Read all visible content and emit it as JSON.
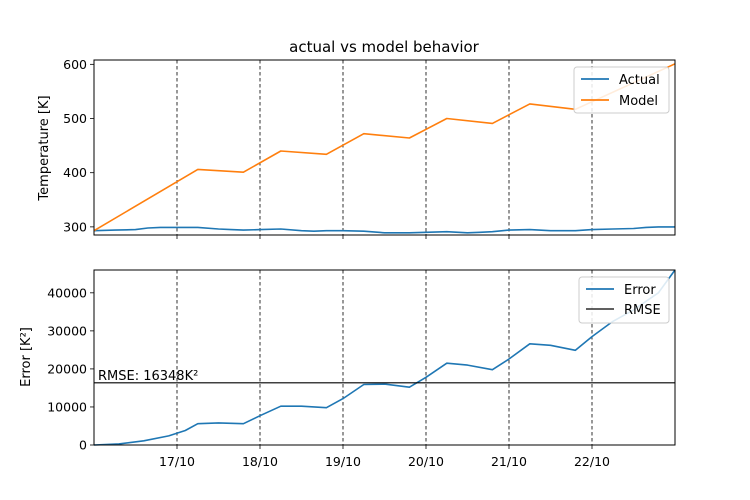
{
  "chart_data": [
    {
      "type": "line",
      "title": "actual vs model behavior",
      "xlabel": "",
      "ylabel": "Temperature [K]",
      "ylim": [
        285,
        608
      ],
      "yticks": [
        300,
        400,
        500,
        600
      ],
      "ytick_labels": [
        "300",
        "400",
        "500",
        "600"
      ],
      "xlim": [
        0,
        7
      ],
      "xticks": [
        1,
        2,
        3,
        4,
        5,
        6
      ],
      "xtick_labels": [
        "",
        "",
        "",
        "",
        "",
        ""
      ],
      "grid": "vertical dashed lines at x ticks",
      "legend": "top-right",
      "x": [
        0,
        0.25,
        0.5,
        0.65,
        0.8,
        1,
        1.25,
        1.5,
        1.65,
        1.8,
        2,
        2.25,
        2.5,
        2.65,
        2.8,
        3,
        3.25,
        3.5,
        3.65,
        3.8,
        4,
        4.25,
        4.5,
        4.65,
        4.8,
        5,
        5.25,
        5.5,
        5.65,
        5.8,
        6,
        6.25,
        6.5,
        6.65,
        6.8,
        7
      ],
      "series": [
        {
          "name": "Actual",
          "color": "#1f77b4",
          "values": [
            293,
            294,
            295,
            298,
            299,
            299,
            299,
            296,
            295,
            294,
            295,
            296,
            293,
            292,
            293,
            293,
            292,
            289,
            289,
            289,
            290,
            291,
            289,
            290,
            291,
            294,
            295,
            293,
            293,
            293,
            295,
            296,
            297,
            299,
            300,
            300
          ]
        },
        {
          "name": "Model",
          "color": "#ff7f0e",
          "x": [
            0,
            1.25,
            1.8,
            2.25,
            2.8,
            3.25,
            3.8,
            4.25,
            4.8,
            5.25,
            5.8,
            7
          ],
          "values": [
            293,
            406,
            401,
            440,
            434,
            472,
            464,
            500,
            491,
            527,
            517,
            601
          ]
        }
      ]
    },
    {
      "type": "line",
      "xlabel": "",
      "ylabel": "Error [K²]",
      "ylim": [
        0,
        46000
      ],
      "yticks": [
        0,
        10000,
        20000,
        30000,
        40000
      ],
      "ytick_labels": [
        "0",
        "10000",
        "20000",
        "30000",
        "40000"
      ],
      "xlim": [
        0,
        7
      ],
      "xticks": [
        1,
        2,
        3,
        4,
        5,
        6
      ],
      "xtick_labels": [
        "17/10",
        "18/10",
        "19/10",
        "20/10",
        "21/10",
        "22/10"
      ],
      "grid": "vertical dashed lines at x ticks",
      "legend": "top-right",
      "annotation": "RMSE: 16348K²",
      "series": [
        {
          "name": "Error",
          "color": "#1f77b4",
          "x": [
            0,
            0.3,
            0.6,
            0.9,
            1.1,
            1.25,
            1.5,
            1.8,
            2,
            2.25,
            2.5,
            2.8,
            3,
            3.25,
            3.5,
            3.8,
            4,
            4.25,
            4.5,
            4.8,
            5,
            5.25,
            5.5,
            5.8,
            6,
            6.25,
            6.5,
            6.8,
            7
          ],
          "values": [
            0,
            300,
            1100,
            2400,
            3800,
            5600,
            5800,
            5600,
            7700,
            10200,
            10200,
            9800,
            12200,
            15900,
            16000,
            15200,
            17800,
            21500,
            21000,
            19800,
            22600,
            26600,
            26200,
            24900,
            28500,
            32500,
            35500,
            40000,
            46000
          ]
        },
        {
          "name": "RMSE",
          "color": "#000000",
          "x": [
            0,
            7
          ],
          "values": [
            16348,
            16348
          ]
        }
      ]
    }
  ]
}
